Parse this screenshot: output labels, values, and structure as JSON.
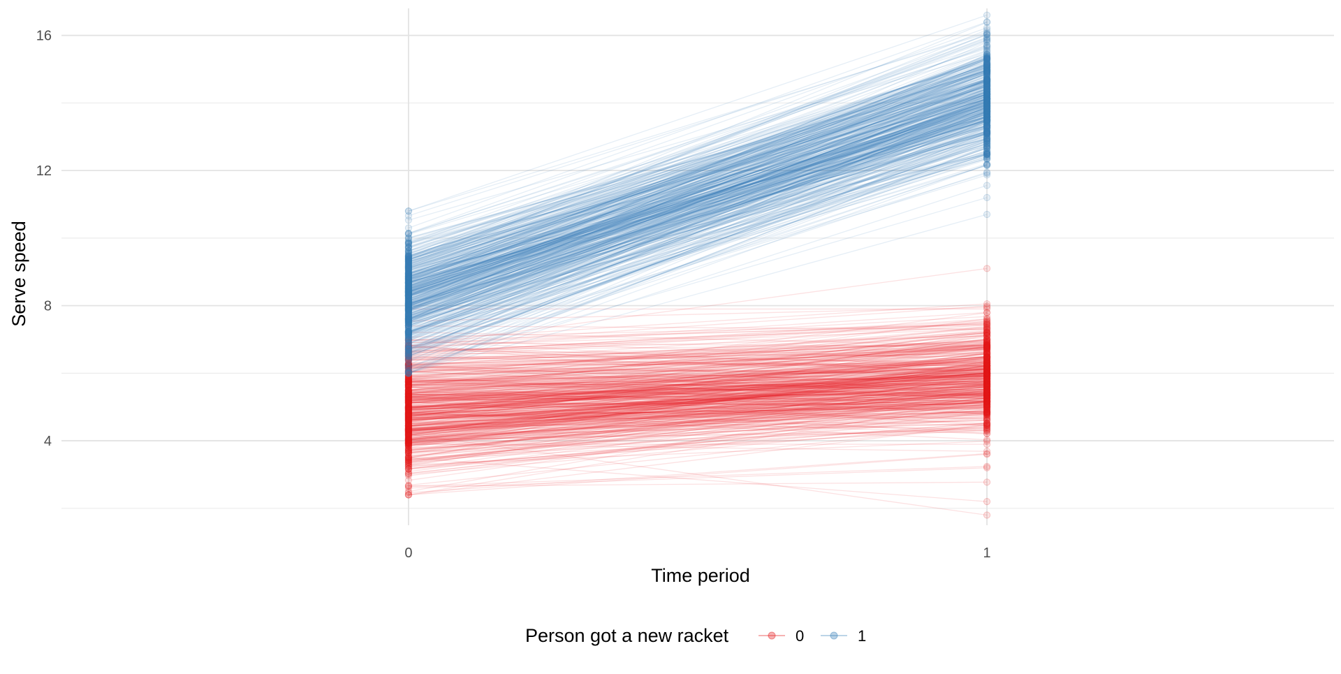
{
  "chart_data": {
    "type": "line",
    "title": "",
    "xlabel": "Time period",
    "ylabel": "Serve speed",
    "x_ticks": [
      "0",
      "1"
    ],
    "y_ticks": [
      "4",
      "8",
      "12",
      "16"
    ],
    "xlim": [
      -0.6,
      1.6
    ],
    "ylim": [
      1.5,
      16.8
    ],
    "grid": true,
    "legend": {
      "title": "Person got a new racket",
      "position": "bottom",
      "entries": [
        {
          "label": "0",
          "color": "#e41a1c"
        },
        {
          "label": "1",
          "color": "#377eb8"
        }
      ]
    },
    "series": [
      {
        "name": "0",
        "color": "#e41a1c",
        "n_lines": 500,
        "x": [
          0,
          1
        ],
        "mean": [
          5.0,
          5.9
        ],
        "range_t0": [
          2.4,
          7.9
        ],
        "range_t1": [
          1.8,
          9.1
        ],
        "typical_band_t0": [
          3.0,
          7.0
        ],
        "typical_band_t1": [
          3.6,
          8.4
        ],
        "highlight_lines": [
          {
            "y": [
              2.4,
              3.6
            ]
          },
          {
            "y": [
              2.6,
              3.2
            ]
          },
          {
            "y": [
              3.5,
              2.2
            ]
          },
          {
            "y": [
              4.2,
              1.8
            ]
          },
          {
            "y": [
              7.9,
              7.9
            ]
          },
          {
            "y": [
              6.8,
              9.1
            ]
          }
        ]
      },
      {
        "name": "1",
        "color": "#377eb8",
        "n_lines": 500,
        "x": [
          0,
          1
        ],
        "mean": [
          8.2,
          14.0
        ],
        "range_t0": [
          6.0,
          10.8
        ],
        "range_t1": [
          10.7,
          16.6
        ],
        "typical_band_t0": [
          6.6,
          10.2
        ],
        "typical_band_t1": [
          11.5,
          16.3
        ],
        "highlight_lines": [
          {
            "y": [
              10.8,
              16.6
            ]
          },
          {
            "y": [
              10.3,
              16.4
            ]
          },
          {
            "y": [
              6.0,
              10.7
            ]
          },
          {
            "y": [
              6.2,
              11.2
            ]
          }
        ]
      }
    ]
  }
}
